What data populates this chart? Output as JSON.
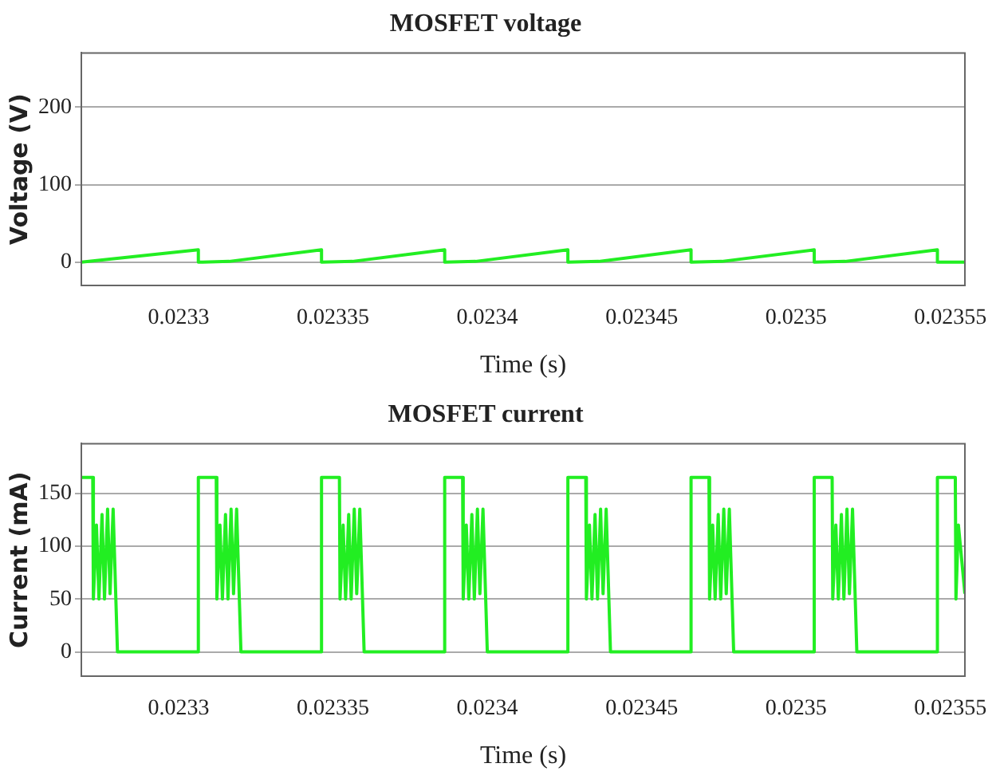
{
  "chart_data": [
    {
      "type": "line",
      "title": "MOSFET voltage",
      "xlabel": "Time (s)",
      "ylabel": "Voltage (V)",
      "grid": "y",
      "xlim": [
        0.0232685,
        0.0235547
      ],
      "xticks": [
        0.0233,
        0.02335,
        0.0234,
        0.02345,
        0.0235,
        0.02355
      ],
      "ylim": [
        -30,
        270
      ],
      "yticks": [
        0,
        100,
        200
      ],
      "series": [
        {
          "color": "#22ee22",
          "x": [
            0.0232685,
            0.0233064,
            0.0233064,
            0.0233164,
            0.0233463,
            0.0233463,
            0.0233563,
            0.0233862,
            0.0233862,
            0.0233962,
            0.0234261,
            0.0234261,
            0.0234361,
            0.023466,
            0.023466,
            0.023476,
            0.0235059,
            0.0235059,
            0.0235159,
            0.0235458,
            0.0235458,
            0.0235547
          ],
          "values": [
            0,
            16,
            0,
            1,
            16,
            0,
            1,
            16,
            0,
            1,
            16,
            0,
            1,
            16,
            0,
            1,
            16,
            0,
            1,
            16,
            0,
            0
          ]
        }
      ]
    },
    {
      "type": "line",
      "title": "MOSFET current",
      "xlabel": "Time (s)",
      "ylabel": "Current (mA)",
      "grid": "y",
      "xlim": [
        0.0232685,
        0.0235547
      ],
      "xticks": [
        0.0233,
        0.02335,
        0.0234,
        0.02345,
        0.0235,
        0.02355
      ],
      "ylim": [
        -23,
        197
      ],
      "yticks": [
        0,
        50,
        100,
        150
      ],
      "series": [
        {
          "color": "#22ee22",
          "x": [
            0.0232685,
            0.0232722,
            0.0232724,
            0.0232734,
            0.0232742,
            0.0232752,
            0.023276,
            0.023277,
            0.0232778,
            0.0232788,
            0.0232802,
            0.0233064,
            0.0233064,
            0.0233122,
            0.0233124,
            0.0233134,
            0.0233142,
            0.0233152,
            0.023316,
            0.023317,
            0.0233178,
            0.0233188,
            0.0233202,
            0.0233463,
            0.0233463,
            0.0233521,
            0.0233523,
            0.0233533,
            0.0233541,
            0.0233551,
            0.0233559,
            0.0233569,
            0.0233577,
            0.0233587,
            0.0233601,
            0.0233862,
            0.0233862,
            0.023392,
            0.0233922,
            0.0233932,
            0.023394,
            0.023395,
            0.0233958,
            0.0233968,
            0.0233976,
            0.0233986,
            0.0234,
            0.0234261,
            0.0234261,
            0.0234319,
            0.0234321,
            0.0234331,
            0.0234339,
            0.0234349,
            0.0234357,
            0.0234367,
            0.0234375,
            0.0234385,
            0.0234399,
            0.023466,
            0.023466,
            0.0234718,
            0.023472,
            0.023473,
            0.0234738,
            0.0234748,
            0.0234756,
            0.0234766,
            0.0234774,
            0.0234784,
            0.0234798,
            0.0235059,
            0.0235059,
            0.0235117,
            0.0235119,
            0.0235129,
            0.0235137,
            0.0235147,
            0.0235155,
            0.0235165,
            0.0235173,
            0.0235183,
            0.0235197,
            0.0235458,
            0.0235458,
            0.0235516,
            0.0235518,
            0.0235526,
            0.0235547
          ],
          "values": [
            165,
            165,
            50,
            120,
            50,
            130,
            50,
            135,
            55,
            135,
            0,
            0,
            165,
            165,
            50,
            120,
            50,
            130,
            50,
            135,
            55,
            135,
            0,
            0,
            165,
            165,
            50,
            120,
            50,
            130,
            50,
            135,
            55,
            135,
            0,
            0,
            165,
            165,
            50,
            120,
            50,
            130,
            50,
            135,
            55,
            135,
            0,
            0,
            165,
            165,
            50,
            120,
            50,
            130,
            50,
            135,
            55,
            135,
            0,
            0,
            165,
            165,
            50,
            120,
            50,
            130,
            50,
            135,
            55,
            135,
            0,
            0,
            165,
            165,
            50,
            120,
            50,
            130,
            50,
            135,
            55,
            135,
            0,
            0,
            165,
            165,
            50,
            120,
            55
          ]
        }
      ]
    }
  ]
}
